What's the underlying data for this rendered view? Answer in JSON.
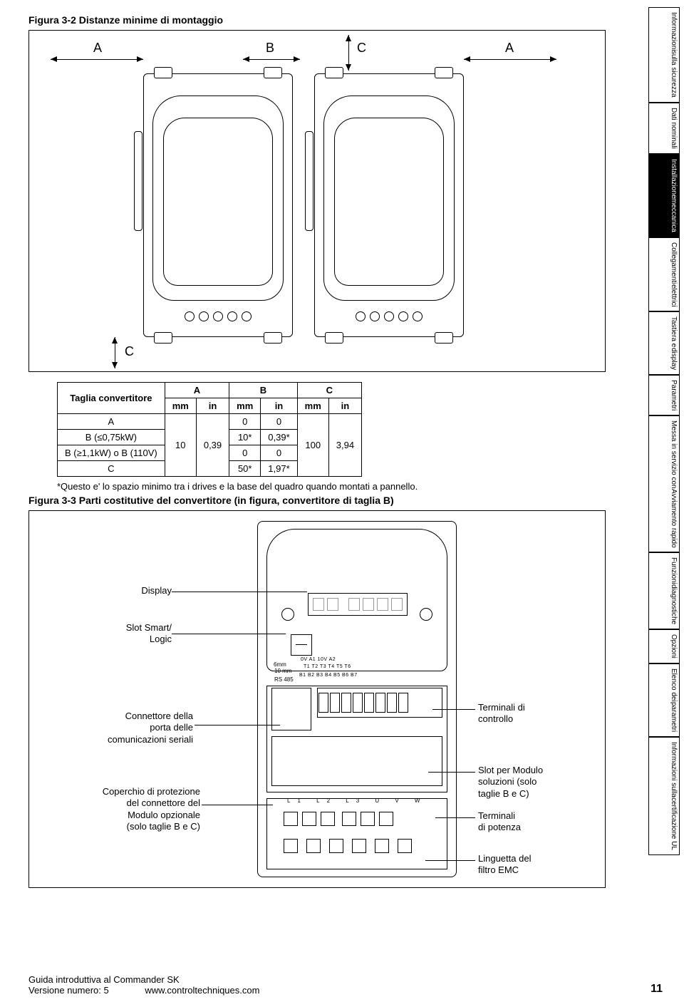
{
  "figures": {
    "fig32_title": "Figura 3-2  Distanze minime di montaggio",
    "fig33_title": "Figura 3-3  Parti costitutive del convertitore (in figura, convertitore di taglia B)",
    "dim_labels": {
      "A": "A",
      "B": "B",
      "C": "C"
    }
  },
  "table": {
    "header_taglia": "Taglia convertitore",
    "col_A": "A",
    "col_B": "B",
    "col_C": "C",
    "unit_mm": "mm",
    "unit_in": "in",
    "rows": [
      {
        "label": "A",
        "b_mm": "0",
        "b_in": "0"
      },
      {
        "label": "B (≤0,75kW)",
        "b_mm": "10*",
        "b_in": "0,39*"
      },
      {
        "label": "B (≥1,1kW) o B (110V)",
        "b_mm": "0",
        "b_in": "0"
      },
      {
        "label": "C",
        "b_mm": "50*",
        "b_in": "1,97*"
      }
    ],
    "a_mm": "10",
    "a_in": "0,39",
    "c_mm": "100",
    "c_in": "3,94",
    "note": "*Questo e' lo spazio minimo tra i drives e la base del quadro quando montati a pannello."
  },
  "fig33": {
    "display": "Display",
    "slot": "Slot Smart/\nLogic",
    "conn": "Connettore della\nporta delle\ncomunicazioni seriali",
    "cover": "Coperchio di protezione\ndel connettore del\nModulo opzionale\n(solo taglie B e C)",
    "ctrl_term": "Terminali di\ncontrollo",
    "sol_slot": "Slot per Modulo\nsoluzioni (solo\ntaglie B e C)",
    "pow_term": "Terminali\ndi potenza",
    "emc": "Linguetta del\nfiltro EMC",
    "rs485": "RS 485",
    "dim6": "6mm",
    "dim10": "10 mm",
    "row1": "0V A1 10V A2",
    "row2": "T1 T2 T3 T4 T5 T6",
    "row3": "B1 B2 B3 B4 B5 B6 B7",
    "plabels": "L1 L2 L3  U  V  W"
  },
  "tabs": [
    {
      "l1": "Informazioni",
      "l2": "sulla sicurezza",
      "active": false
    },
    {
      "l1": "Dati nominali",
      "l2": "",
      "active": false
    },
    {
      "l1": "Installazione",
      "l2": "meccanica",
      "active": true
    },
    {
      "l1": "Collegamenti",
      "l2": "elettrici",
      "active": false
    },
    {
      "l1": "Tastiera e",
      "l2": "display",
      "active": false
    },
    {
      "l1": "Parametri",
      "l2": "",
      "active": false
    },
    {
      "l1": "Messa in servizio con",
      "l2": "Avviamento rapido",
      "active": false
    },
    {
      "l1": "Funzioni",
      "l2": "diagnostiche",
      "active": false
    },
    {
      "l1": "Opzioni",
      "l2": "",
      "active": false
    },
    {
      "l1": "Elenco dei",
      "l2": "parametri",
      "active": false
    },
    {
      "l1": "Informazioni sulla",
      "l2": "certificazione UL",
      "active": false
    }
  ],
  "footer": {
    "line1": "Guida introduttiva al Commander SK",
    "line2_a": "Versione numero:  5",
    "line2_b": "www.controltechniques.com",
    "page": "11"
  }
}
